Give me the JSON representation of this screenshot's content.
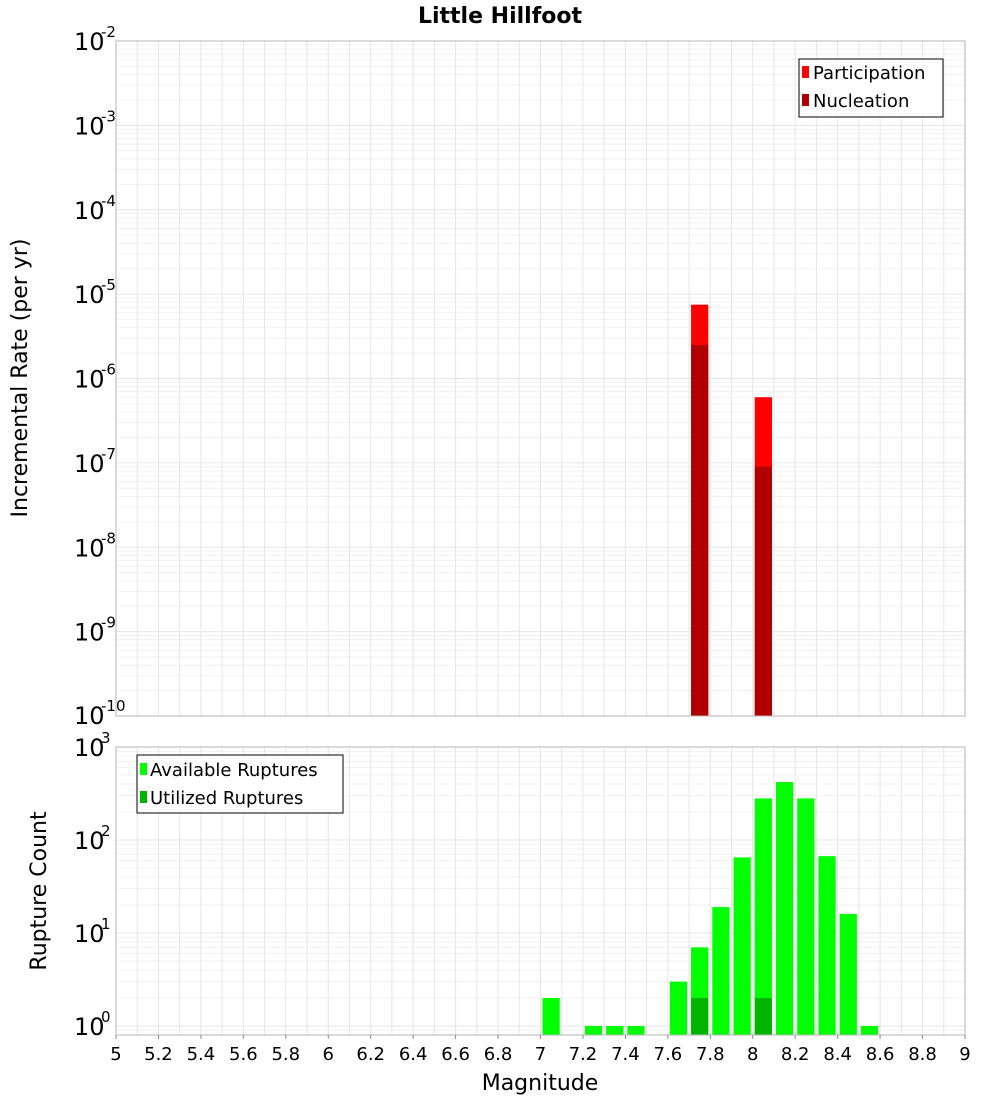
{
  "title": "Little Hillfoot",
  "colors": {
    "participation": "#ff0000",
    "nucleation": "#b00000",
    "available": "#00ff00",
    "utilized": "#00b400"
  },
  "chart_data": [
    {
      "type": "bar",
      "scale": "log",
      "ylabel": "Incremental Rate (per yr)",
      "xlim": [
        5,
        9
      ],
      "ylim": [
        1e-10,
        0.01
      ],
      "y_ticks": [
        {
          "base": "10",
          "exp": "-10"
        },
        {
          "base": "10",
          "exp": "-9"
        },
        {
          "base": "10",
          "exp": "-8"
        },
        {
          "base": "10",
          "exp": "-7"
        },
        {
          "base": "10",
          "exp": "-6"
        },
        {
          "base": "10",
          "exp": "-5"
        },
        {
          "base": "10",
          "exp": "-4"
        },
        {
          "base": "10",
          "exp": "-3"
        },
        {
          "base": "10",
          "exp": "-2"
        }
      ],
      "legend": [
        "Participation",
        "Nucleation"
      ],
      "legend_position": "top-right",
      "bin_width": 0.1,
      "series": [
        {
          "name": "Participation",
          "x": [
            7.75,
            8.05
          ],
          "values": [
            7.5e-06,
            6e-07
          ]
        },
        {
          "name": "Nucleation",
          "x": [
            7.75,
            8.05
          ],
          "values": [
            2.5e-06,
            9e-08
          ]
        }
      ]
    },
    {
      "type": "bar",
      "scale": "log",
      "ylabel": "Rupture Count",
      "xlabel": "Magnitude",
      "xlim": [
        5,
        9
      ],
      "ylim": [
        0.8,
        1000
      ],
      "y_ticks": [
        {
          "base": "10",
          "exp": "0"
        },
        {
          "base": "10",
          "exp": "1"
        },
        {
          "base": "10",
          "exp": "2"
        },
        {
          "base": "10",
          "exp": "3"
        }
      ],
      "x_ticks": [
        "5",
        "5.2",
        "5.4",
        "5.6",
        "5.8",
        "6",
        "6.2",
        "6.4",
        "6.6",
        "6.8",
        "7",
        "7.2",
        "7.4",
        "7.6",
        "7.8",
        "8",
        "8.2",
        "8.4",
        "8.6",
        "8.8",
        "9"
      ],
      "legend": [
        "Available Ruptures",
        "Utilized Ruptures"
      ],
      "legend_position": "top-left",
      "bin_width": 0.1,
      "series": [
        {
          "name": "Available Ruptures",
          "x": [
            7.05,
            7.25,
            7.35,
            7.45,
            7.65,
            7.75,
            7.85,
            7.95,
            8.05,
            8.15,
            8.25,
            8.35,
            8.45,
            8.55
          ],
          "values": [
            2,
            1,
            1,
            1,
            3,
            7,
            19,
            65,
            280,
            420,
            280,
            67,
            16,
            1
          ]
        },
        {
          "name": "Utilized Ruptures",
          "x": [
            7.75,
            8.05
          ],
          "values": [
            2,
            2
          ]
        }
      ]
    }
  ]
}
